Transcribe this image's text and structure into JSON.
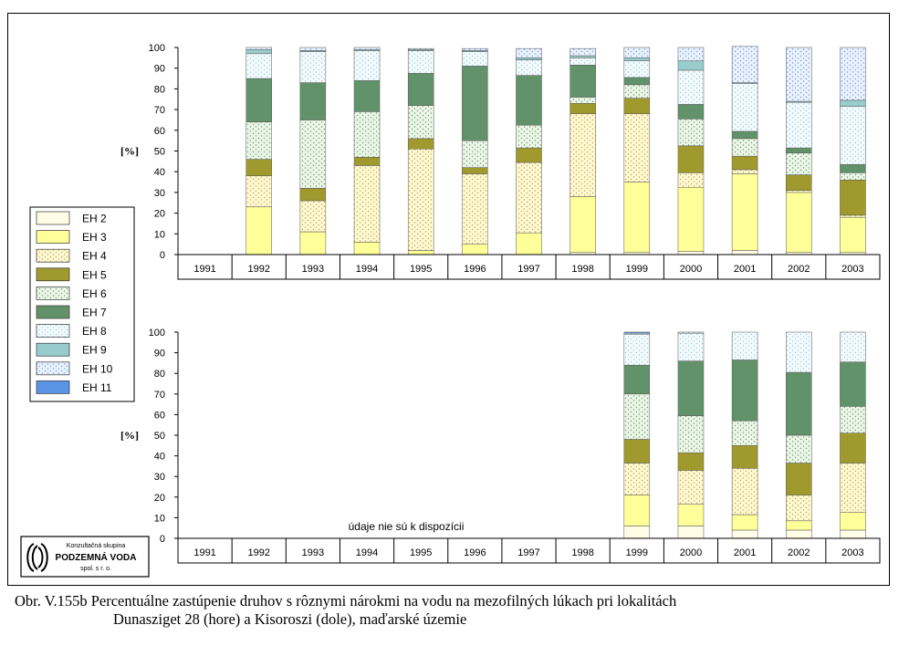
{
  "caption": {
    "line1": "Obr. V.155b Percentuálne zastúpenie druhov s rôznymi nárokmi na vodu na mezofilných lúkach pri lokalitách",
    "line2": "Dunasziget 28 (hore) a Kisoroszi (dole), maďarské územie"
  },
  "logo": {
    "line1": "Konzultačná skupina",
    "line2": "PODZEMNÁ VODA",
    "line3": "spol. s r. o."
  },
  "colors": {
    "EH 2": "#fffde6",
    "EH 3": "#ffff99",
    "EH 4": "#fff7cc",
    "EH 5": "#a09a2e",
    "EH 6": "#e6f3e0",
    "EH 7": "#62926a",
    "EH 8": "#eef8fc",
    "EH 9": "#99cccc",
    "EH 10": "#e6f0fc",
    "EH 11": "#5b93e6"
  },
  "chart_data": [
    {
      "type": "bar",
      "stacked": true,
      "ylabel": "[%]",
      "ylim": [
        0,
        100
      ],
      "yticks": [
        0,
        10,
        20,
        30,
        40,
        50,
        60,
        70,
        80,
        90,
        100
      ],
      "categories": [
        "1991",
        "1992",
        "1993",
        "1994",
        "1995",
        "1996",
        "1997",
        "1998",
        "1999",
        "2000",
        "2001",
        "2002",
        "2003"
      ],
      "series": [
        {
          "name": "EH 2",
          "values": [
            null,
            0,
            0,
            0,
            0,
            0,
            0,
            1,
            1,
            1.5,
            2,
            1,
            1
          ]
        },
        {
          "name": "EH 3",
          "values": [
            null,
            23,
            11,
            6,
            2,
            5,
            10.5,
            27,
            34,
            31,
            37,
            29,
            17
          ]
        },
        {
          "name": "EH 4",
          "values": [
            null,
            15,
            15,
            37,
            49,
            34,
            34,
            40,
            33,
            7,
            2,
            1,
            1
          ]
        },
        {
          "name": "EH 5",
          "values": [
            null,
            8,
            6,
            4,
            5,
            3,
            7,
            5,
            7.5,
            13,
            6.5,
            7.5,
            17
          ]
        },
        {
          "name": "EH 6",
          "values": [
            null,
            18,
            33,
            22,
            16,
            13,
            11,
            3,
            6.5,
            13,
            8.5,
            10.5,
            3.5
          ]
        },
        {
          "name": "EH 7",
          "values": [
            null,
            21,
            18,
            15,
            15.5,
            36,
            24,
            15.5,
            3.5,
            7,
            3.5,
            2.5,
            4
          ]
        },
        {
          "name": "EH 8",
          "values": [
            null,
            12,
            15,
            14.5,
            11,
            7,
            7.5,
            3.5,
            8,
            16.5,
            23,
            22,
            28
          ]
        },
        {
          "name": "EH 9",
          "values": [
            null,
            2,
            0.5,
            0.5,
            0.5,
            0.5,
            1,
            1,
            1.5,
            4.5,
            0.5,
            0.5,
            3
          ]
        },
        {
          "name": "EH 10",
          "values": [
            null,
            1,
            1.5,
            1,
            0.5,
            1,
            4.5,
            3.5,
            5,
            6.5,
            17.5,
            26,
            25.5
          ]
        },
        {
          "name": "EH 11",
          "values": [
            null,
            0,
            0,
            0,
            0,
            0,
            0,
            0,
            0,
            0,
            0,
            0,
            0
          ]
        }
      ]
    },
    {
      "type": "bar",
      "stacked": true,
      "ylabel": "[%]",
      "ylim": [
        0,
        100
      ],
      "yticks": [
        0,
        10,
        20,
        30,
        40,
        50,
        60,
        70,
        80,
        90,
        100
      ],
      "annotation": "údaje nie sú k dispozícii",
      "categories": [
        "1991",
        "1992",
        "1993",
        "1994",
        "1995",
        "1996",
        "1997",
        "1998",
        "1999",
        "2000",
        "2001",
        "2002",
        "2003"
      ],
      "series": [
        {
          "name": "EH 2",
          "values": [
            null,
            null,
            null,
            null,
            null,
            null,
            null,
            null,
            6,
            6,
            4,
            4,
            4
          ]
        },
        {
          "name": "EH 3",
          "values": [
            null,
            null,
            null,
            null,
            null,
            null,
            null,
            null,
            15,
            10.5,
            7.5,
            4.5,
            8.5
          ]
        },
        {
          "name": "EH 4",
          "values": [
            null,
            null,
            null,
            null,
            null,
            null,
            null,
            null,
            15.5,
            16.5,
            22.5,
            12.5,
            24
          ]
        },
        {
          "name": "EH 5",
          "values": [
            null,
            null,
            null,
            null,
            null,
            null,
            null,
            null,
            11.5,
            8.5,
            11,
            15.5,
            14.5
          ]
        },
        {
          "name": "EH 6",
          "values": [
            null,
            null,
            null,
            null,
            null,
            null,
            null,
            null,
            22,
            18,
            12,
            13.5,
            13
          ]
        },
        {
          "name": "EH 7",
          "values": [
            null,
            null,
            null,
            null,
            null,
            null,
            null,
            null,
            14,
            26.5,
            29.5,
            30.5,
            21.5
          ]
        },
        {
          "name": "EH 8",
          "values": [
            null,
            null,
            null,
            null,
            null,
            null,
            null,
            null,
            15,
            13.5,
            13.5,
            19.5,
            14.5
          ]
        },
        {
          "name": "EH 9",
          "values": [
            null,
            null,
            null,
            null,
            null,
            null,
            null,
            null,
            0,
            0,
            0,
            0,
            0
          ]
        },
        {
          "name": "EH 10",
          "values": [
            null,
            null,
            null,
            null,
            null,
            null,
            null,
            null,
            0.5,
            0.5,
            0,
            0,
            0
          ]
        },
        {
          "name": "EH 11",
          "values": [
            null,
            null,
            null,
            null,
            null,
            null,
            null,
            null,
            0.5,
            0,
            0,
            0,
            0
          ]
        }
      ]
    }
  ]
}
